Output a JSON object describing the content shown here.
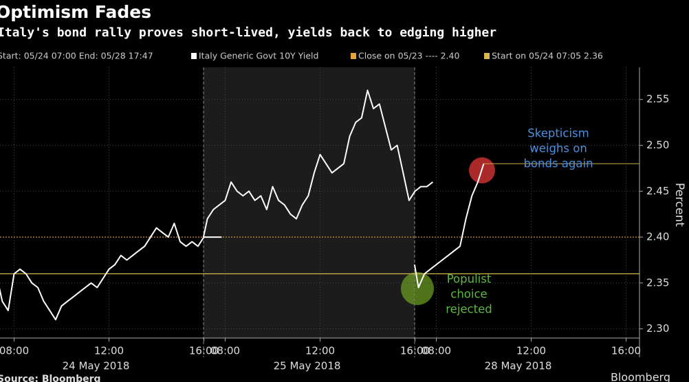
{
  "chart_data": {
    "type": "line",
    "title": "Optimism Fades",
    "subtitle": "Italy's bond rally proves short-lived, yields back to edging higher",
    "range_label": "Start: 05/24 07:00 End: 05/28 17:47",
    "y_axis_label": "Percent",
    "source": "Source: Bloomberg",
    "brand": "Bloomberg",
    "ylim": [
      2.29,
      2.585
    ],
    "yticks": [
      {
        "value": 2.3,
        "label": "2.30"
      },
      {
        "value": 2.35,
        "label": "2.35"
      },
      {
        "value": 2.4,
        "label": "2.40"
      },
      {
        "value": 2.45,
        "label": "2.45"
      },
      {
        "value": 2.5,
        "label": "2.50"
      },
      {
        "value": 2.55,
        "label": "2.55"
      }
    ],
    "xticks": [
      {
        "value": "2018-05-24 08:00",
        "label": "08:00"
      },
      {
        "value": "2018-05-24 12:00",
        "label": "12:00"
      },
      {
        "value": "2018-05-24 16:00",
        "label": "16:00"
      },
      {
        "value": "2018-05-25 08:00",
        "label": "08:00"
      },
      {
        "value": "2018-05-25 12:00",
        "label": "12:00"
      },
      {
        "value": "2018-05-25 16:00",
        "label": "16:00"
      },
      {
        "value": "2018-05-28 08:00",
        "label": "08:00"
      },
      {
        "value": "2018-05-28 12:00",
        "label": "12:00"
      },
      {
        "value": "2018-05-28 16:00",
        "label": "16:00"
      }
    ],
    "x_day_labels": [
      {
        "value": "2018-05-24",
        "label": "24 May 2018"
      },
      {
        "value": "2018-05-25",
        "label": "25 May 2018"
      },
      {
        "value": "2018-05-28",
        "label": "28 May 2018"
      }
    ],
    "grid": true,
    "x": [
      "2018-05-24 07:00",
      "2018-05-24 07:15",
      "2018-05-24 07:30",
      "2018-05-24 07:45",
      "2018-05-24 08:00",
      "2018-05-24 08:15",
      "2018-05-24 08:30",
      "2018-05-24 08:45",
      "2018-05-24 09:00",
      "2018-05-24 09:15",
      "2018-05-24 09:30",
      "2018-05-24 09:45",
      "2018-05-24 10:00",
      "2018-05-24 10:15",
      "2018-05-24 10:30",
      "2018-05-24 10:45",
      "2018-05-24 11:00",
      "2018-05-24 11:15",
      "2018-05-24 11:30",
      "2018-05-24 11:45",
      "2018-05-24 12:00",
      "2018-05-24 12:15",
      "2018-05-24 12:30",
      "2018-05-24 12:45",
      "2018-05-24 13:00",
      "2018-05-24 13:15",
      "2018-05-24 13:30",
      "2018-05-24 13:45",
      "2018-05-24 14:00",
      "2018-05-24 14:15",
      "2018-05-24 14:30",
      "2018-05-24 14:45",
      "2018-05-24 15:00",
      "2018-05-24 15:15",
      "2018-05-24 15:30",
      "2018-05-24 15:45",
      "2018-05-24 16:00",
      "2018-05-24 16:15",
      "2018-05-24 16:30",
      "2018-05-24 16:45",
      "2018-05-25 07:05",
      "2018-05-25 07:15",
      "2018-05-25 07:30",
      "2018-05-25 07:45",
      "2018-05-25 08:00",
      "2018-05-25 08:15",
      "2018-05-25 08:30",
      "2018-05-25 08:45",
      "2018-05-25 09:00",
      "2018-05-25 09:15",
      "2018-05-25 09:30",
      "2018-05-25 09:45",
      "2018-05-25 10:00",
      "2018-05-25 10:15",
      "2018-05-25 10:30",
      "2018-05-25 10:45",
      "2018-05-25 11:00",
      "2018-05-25 11:15",
      "2018-05-25 11:30",
      "2018-05-25 11:45",
      "2018-05-25 12:00",
      "2018-05-25 12:15",
      "2018-05-25 12:30",
      "2018-05-25 12:45",
      "2018-05-25 13:00",
      "2018-05-25 13:15",
      "2018-05-25 13:30",
      "2018-05-25 13:45",
      "2018-05-25 14:00",
      "2018-05-25 14:15",
      "2018-05-25 14:30",
      "2018-05-25 14:45",
      "2018-05-25 15:00",
      "2018-05-25 15:15",
      "2018-05-25 15:30",
      "2018-05-25 15:45",
      "2018-05-25 16:00",
      "2018-05-25 16:15",
      "2018-05-25 16:30",
      "2018-05-25 16:45",
      "2018-05-28 07:05",
      "2018-05-28 07:15",
      "2018-05-28 07:30",
      "2018-05-28 07:45",
      "2018-05-28 08:00",
      "2018-05-28 08:15",
      "2018-05-28 08:30",
      "2018-05-28 08:45",
      "2018-05-28 09:00",
      "2018-05-28 09:15",
      "2018-05-28 09:30",
      "2018-05-28 09:45",
      "2018-05-28 10:00"
    ],
    "series": [
      {
        "name": "Italy Generic Govt 10Y Yield",
        "color": "#ffffff",
        "values": [
          2.37,
          2.36,
          2.33,
          2.32,
          2.36,
          2.365,
          2.36,
          2.35,
          2.345,
          2.33,
          2.32,
          2.31,
          2.325,
          2.33,
          2.335,
          2.34,
          2.345,
          2.35,
          2.345,
          2.355,
          2.365,
          2.37,
          2.38,
          2.375,
          2.38,
          2.385,
          2.39,
          2.4,
          2.41,
          2.405,
          2.4,
          2.415,
          2.395,
          2.39,
          2.395,
          2.39,
          2.4,
          2.4,
          2.4,
          2.4,
          2.4,
          2.42,
          2.43,
          2.435,
          2.44,
          2.46,
          2.45,
          2.445,
          2.45,
          2.44,
          2.445,
          2.43,
          2.455,
          2.44,
          2.435,
          2.425,
          2.42,
          2.435,
          2.445,
          2.47,
          2.49,
          2.48,
          2.47,
          2.475,
          2.48,
          2.51,
          2.525,
          2.53,
          2.56,
          2.54,
          2.545,
          2.52,
          2.495,
          2.5,
          2.47,
          2.44,
          2.45,
          2.455,
          2.455,
          2.46,
          2.37,
          2.345,
          2.36,
          2.365,
          2.37,
          2.375,
          2.38,
          2.385,
          2.39,
          2.42,
          2.445,
          2.46,
          2.48
        ]
      }
    ],
    "reference_lines": [
      {
        "name": "Close on 05/23 ---- 2.40",
        "value": 2.4,
        "color": "#e8a33c"
      },
      {
        "name": "Start on 05/24 07:05 2.36",
        "value": 2.36,
        "color": "#d8b84a"
      }
    ],
    "annotations": [
      {
        "lines": [
          "Skepticism",
          "weighs on",
          "bonds again"
        ],
        "color": "#4a8fe0"
      },
      {
        "lines": [
          "Populist",
          "choice",
          "rejected"
        ],
        "color": "#5cb840"
      }
    ]
  }
}
